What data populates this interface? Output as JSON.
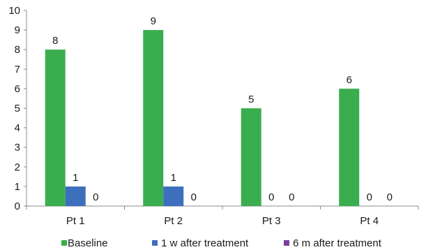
{
  "chart_data": {
    "type": "bar",
    "categories": [
      "Pt 1",
      "Pt 2",
      "Pt 3",
      "Pt 4"
    ],
    "series": [
      {
        "name": "Baseline",
        "values": [
          8,
          9,
          5,
          6
        ],
        "color": "#3aae4f",
        "labels": [
          "8",
          "9",
          "5",
          "6"
        ]
      },
      {
        "name": "1 w after treatment",
        "values": [
          1,
          1,
          0,
          0
        ],
        "color": "#3d6fbd",
        "labels": [
          "1",
          "1",
          "0",
          "0"
        ]
      },
      {
        "name": "6 m after treatment",
        "values": [
          0,
          0,
          0,
          0
        ],
        "color": "#7a3d9c",
        "labels": [
          "0",
          "0",
          "0",
          "0"
        ]
      }
    ],
    "ylim": [
      0,
      10
    ],
    "yticks": [
      "0",
      "1",
      "2",
      "3",
      "4",
      "5",
      "6",
      "7",
      "8",
      "9",
      "10"
    ],
    "xlabel": "",
    "ylabel": "",
    "grid": false,
    "legend_position": "bottom"
  }
}
